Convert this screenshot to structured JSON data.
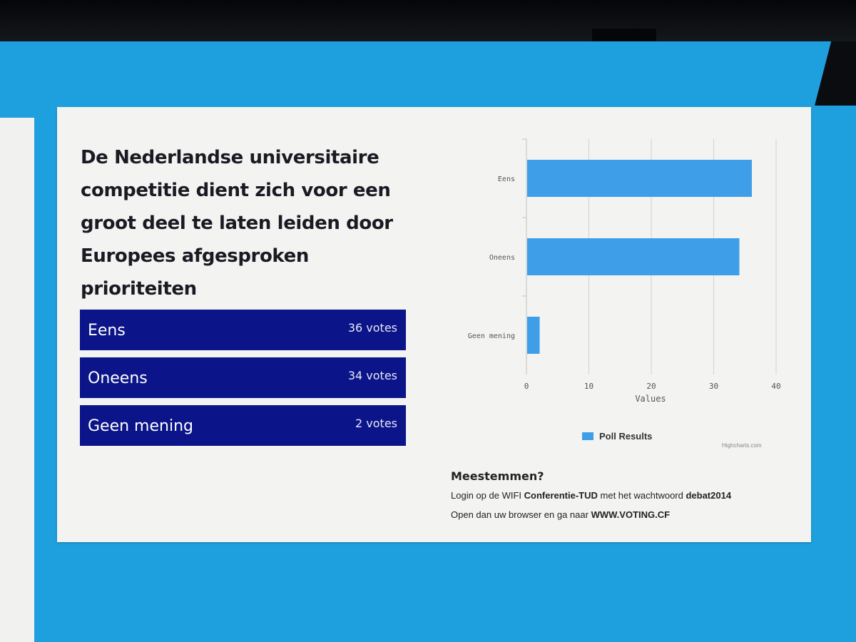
{
  "question": "De Nederlandse universitaire competitie dient zich voor een groot deel te laten leiden door Europees afgesproken prioriteiten",
  "options": [
    {
      "label": "Eens",
      "votes": "36 votes"
    },
    {
      "label": "Oneens",
      "votes": "34 votes"
    },
    {
      "label": "Geen mening",
      "votes": "2 votes"
    }
  ],
  "chart_data": {
    "type": "bar",
    "orientation": "horizontal",
    "categories": [
      "Eens",
      "Oneens",
      "Geen mening"
    ],
    "series": [
      {
        "name": "Poll Results",
        "values": [
          36,
          34,
          2
        ]
      }
    ],
    "xlabel": "Values",
    "xlim": [
      0,
      40
    ],
    "ticks": [
      "0",
      "10",
      "20",
      "30",
      "40"
    ],
    "grid": true,
    "legend": "bottom-center",
    "credits": "Highcharts.com"
  },
  "instructions": {
    "title": "Meestemmen?",
    "line1_prefix": "Login op de WIFI ",
    "line1_network": "Conferentie-TUD",
    "line1_mid": " met het wachtwoord ",
    "line1_password": "debat2014",
    "line2_prefix": "Open dan uw browser en ga naar ",
    "line2_url": "WWW.VOTING.CF"
  },
  "colors": {
    "background": "#1fa0de",
    "option_bar": "#0b1488",
    "chart_bar": "#3f9ee8"
  }
}
